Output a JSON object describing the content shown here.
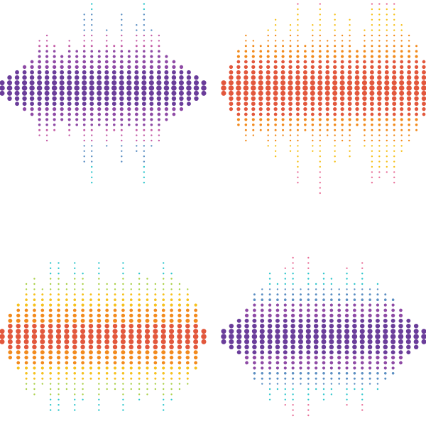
{
  "title": "",
  "colors": {
    "background": "#ffffff",
    "purple": "#6a3d9a",
    "violet": "#8e4aa5",
    "magenta": "#c45ba5",
    "pink": "#e8729a",
    "cyan": "#2ec6cc",
    "steel_blue": "#5a8ec2",
    "yellow": "#f6c11c",
    "orange": "#f28a1c",
    "red_orange": "#e2573c",
    "lime": "#a8cf45"
  },
  "waveforms": [
    {
      "name": "waveform-purple-cyan",
      "style": "center purple fading to magenta then cyan tips",
      "palette": [
        "purple",
        "violet",
        "magenta",
        "steel_blue",
        "cyan"
      ],
      "amplitudes": [
        1,
        2,
        3,
        4,
        5,
        9,
        10,
        8,
        6,
        9,
        7,
        14,
        18,
        7,
        11,
        8,
        14,
        7,
        12,
        18,
        11,
        10,
        6,
        5,
        4,
        3,
        2,
        1
      ]
    },
    {
      "name": "waveform-orange-pink",
      "style": "center red-orange through orange and yellow to pink tips",
      "palette": [
        "red_orange",
        "orange",
        "yellow",
        "pink"
      ],
      "amplitudes": [
        1,
        4,
        7,
        10,
        9,
        8,
        11,
        13,
        9,
        12,
        18,
        8,
        12,
        20,
        9,
        14,
        10,
        13,
        7,
        11,
        18,
        17,
        16,
        18,
        12,
        10,
        8,
        5
      ]
    },
    {
      "name": "waveform-orange-cyan",
      "style": "center red-orange through orange, yellow, lime to cyan tips",
      "palette": [
        "red_orange",
        "orange",
        "yellow",
        "lime",
        "cyan"
      ],
      "amplitudes": [
        1,
        4,
        6,
        10,
        11,
        9,
        14,
        14,
        10,
        14,
        12,
        8,
        14,
        10,
        10,
        14,
        10,
        12,
        11,
        10,
        14,
        12,
        10,
        9,
        6,
        1
      ]
    },
    {
      "name": "waveform-purple-pink",
      "style": "center purple through violet and blue-cyan to pink tips",
      "palette": [
        "purple",
        "violet",
        "steel_blue",
        "cyan",
        "pink"
      ],
      "amplitudes": [
        1,
        2,
        3,
        5,
        8,
        9,
        12,
        10,
        13,
        15,
        9,
        15,
        10,
        12,
        11,
        9,
        13,
        10,
        14,
        9,
        10,
        8,
        7,
        5,
        3,
        2,
        1
      ]
    }
  ]
}
